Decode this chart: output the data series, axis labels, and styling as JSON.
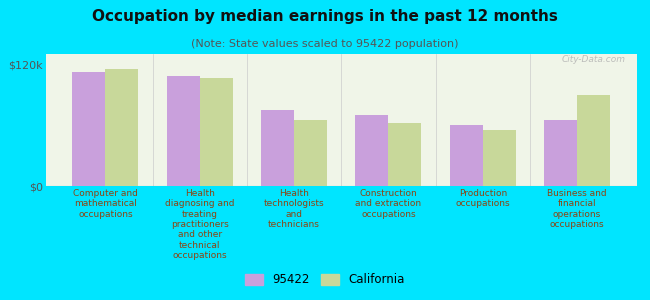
{
  "title": "Occupation by median earnings in the past 12 months",
  "subtitle": "(Note: State values scaled to 95422 population)",
  "background_color": "#00e5ff",
  "plot_bg_color": "#f0f5e8",
  "categories": [
    "Computer and\nmathematical\noccupations",
    "Health\ndiagnosing and\ntreating\npractitioners\nand other\ntechnical\noccupations",
    "Health\ntechnologists\nand\ntechnicians",
    "Construction\nand extraction\noccupations",
    "Production\noccupations",
    "Business and\nfinancial\noperations\noccupations"
  ],
  "values_95422": [
    112000,
    108000,
    75000,
    70000,
    60000,
    65000
  ],
  "values_california": [
    115000,
    106000,
    65000,
    62000,
    55000,
    90000
  ],
  "color_95422": "#c9a0dc",
  "color_california": "#c8d89a",
  "ylim": [
    0,
    130000
  ],
  "yticks": [
    0,
    120000
  ],
  "ytick_labels": [
    "$0",
    "$120k"
  ],
  "legend_labels": [
    "95422",
    "California"
  ],
  "bar_width": 0.35,
  "title_fontsize": 11,
  "subtitle_fontsize": 8,
  "label_fontsize": 6.5,
  "watermark": "City-Data.com"
}
